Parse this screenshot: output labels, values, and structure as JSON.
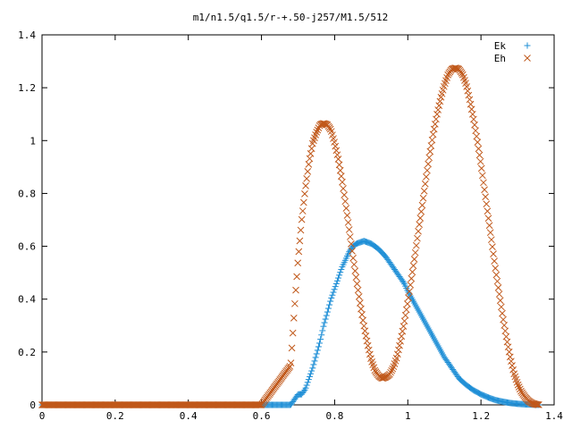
{
  "chart_data": {
    "type": "scatter",
    "title": "m1/n1.5/q1.5/r-+.50-j257/M1.5/512",
    "xlabel": "",
    "ylabel": "",
    "xlim": [
      0,
      1.4
    ],
    "ylim": [
      0,
      1.4
    ],
    "x_ticks": [
      "0",
      "0.2",
      "0.4",
      "0.6",
      "0.8",
      "1",
      "1.2",
      "1.4"
    ],
    "y_ticks": [
      "0",
      "0.2",
      "0.4",
      "0.6",
      "0.8",
      "1",
      "1.2",
      "1.4"
    ],
    "grid": false,
    "legend_position": "top-right",
    "series": [
      {
        "name": "Ek",
        "marker": "plus",
        "color": "#1f8fd6",
        "x": [
          0.0,
          0.1,
          0.2,
          0.3,
          0.4,
          0.5,
          0.6,
          0.68,
          0.69,
          0.7,
          0.71,
          0.72,
          0.73,
          0.74,
          0.75,
          0.76,
          0.77,
          0.78,
          0.79,
          0.8,
          0.81,
          0.82,
          0.83,
          0.84,
          0.85,
          0.86,
          0.87,
          0.88,
          0.89,
          0.9,
          0.91,
          0.92,
          0.93,
          0.94,
          0.95,
          0.96,
          0.97,
          0.98,
          0.99,
          1.0,
          1.02,
          1.04,
          1.06,
          1.08,
          1.1,
          1.12,
          1.14,
          1.16,
          1.18,
          1.2,
          1.22,
          1.24,
          1.26,
          1.28,
          1.3,
          1.32,
          1.34,
          1.36
        ],
        "y": [
          0.0,
          0.0,
          0.0,
          0.0,
          0.0,
          0.0,
          0.0,
          0.0,
          0.02,
          0.04,
          0.04,
          0.06,
          0.1,
          0.14,
          0.19,
          0.24,
          0.3,
          0.35,
          0.4,
          0.44,
          0.48,
          0.52,
          0.55,
          0.58,
          0.6,
          0.61,
          0.615,
          0.62,
          0.615,
          0.61,
          0.6,
          0.59,
          0.575,
          0.56,
          0.54,
          0.52,
          0.5,
          0.48,
          0.46,
          0.43,
          0.38,
          0.33,
          0.28,
          0.23,
          0.18,
          0.14,
          0.1,
          0.075,
          0.055,
          0.04,
          0.028,
          0.018,
          0.012,
          0.007,
          0.004,
          0.002,
          0.001,
          0.0
        ]
      },
      {
        "name": "Eh",
        "marker": "cross",
        "color": "#c0581a",
        "x": [
          0.0,
          0.1,
          0.2,
          0.3,
          0.4,
          0.5,
          0.6,
          0.68,
          0.69,
          0.7,
          0.71,
          0.72,
          0.73,
          0.74,
          0.75,
          0.76,
          0.77,
          0.78,
          0.79,
          0.8,
          0.81,
          0.82,
          0.83,
          0.84,
          0.85,
          0.86,
          0.87,
          0.88,
          0.89,
          0.9,
          0.91,
          0.92,
          0.93,
          0.94,
          0.95,
          0.96,
          0.97,
          0.98,
          0.99,
          1.0,
          1.01,
          1.02,
          1.03,
          1.04,
          1.05,
          1.06,
          1.07,
          1.08,
          1.09,
          1.1,
          1.11,
          1.12,
          1.13,
          1.14,
          1.15,
          1.16,
          1.17,
          1.18,
          1.19,
          1.2,
          1.21,
          1.22,
          1.23,
          1.24,
          1.25,
          1.26,
          1.27,
          1.28,
          1.29,
          1.3,
          1.31,
          1.32,
          1.33,
          1.34,
          1.35,
          1.36
        ],
        "y": [
          0.0,
          0.0,
          0.0,
          0.0,
          0.0,
          0.0,
          0.0,
          0.15,
          0.36,
          0.55,
          0.7,
          0.82,
          0.92,
          0.99,
          1.03,
          1.06,
          1.065,
          1.06,
          1.04,
          0.99,
          0.93,
          0.85,
          0.76,
          0.66,
          0.56,
          0.47,
          0.38,
          0.3,
          0.23,
          0.17,
          0.13,
          0.11,
          0.1,
          0.105,
          0.115,
          0.14,
          0.18,
          0.24,
          0.31,
          0.39,
          0.48,
          0.57,
          0.67,
          0.76,
          0.86,
          0.95,
          1.03,
          1.1,
          1.16,
          1.21,
          1.25,
          1.27,
          1.275,
          1.27,
          1.25,
          1.21,
          1.15,
          1.08,
          1.0,
          0.91,
          0.81,
          0.71,
          0.61,
          0.51,
          0.42,
          0.33,
          0.25,
          0.18,
          0.12,
          0.08,
          0.05,
          0.03,
          0.015,
          0.006,
          0.002,
          0.0
        ]
      }
    ]
  }
}
